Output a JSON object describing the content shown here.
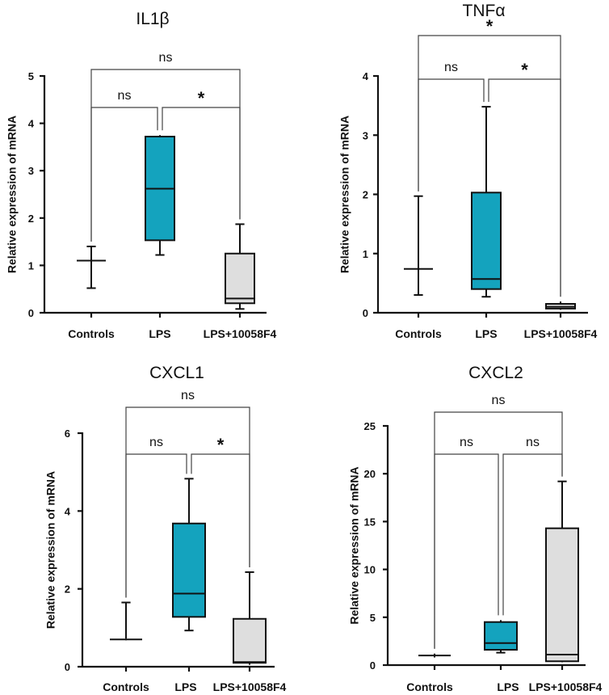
{
  "figure": {
    "box_colors": {
      "Controls": "#ffffff",
      "LPS": "#14a3be",
      "LPS+10058F4": "#dedede"
    }
  },
  "chart_data": [
    {
      "type": "box",
      "title": "IL1β",
      "ylabel": "Relative expression of mRNA",
      "ylim": [
        0,
        5
      ],
      "yticks": [
        "0",
        "1",
        "2",
        "3",
        "4",
        "5"
      ],
      "categories": [
        "Controls",
        "LPS",
        "LPS+10058F4"
      ],
      "boxes": [
        {
          "category": "Controls",
          "min": 0.52,
          "q1": 1.1,
          "median": 1.1,
          "q3": 1.1,
          "max": 1.4
        },
        {
          "category": "LPS",
          "min": 1.22,
          "q1": 1.53,
          "median": 2.62,
          "q3": 3.72,
          "max": 3.75
        },
        {
          "category": "LPS+10058F4",
          "min": 0.08,
          "q1": 0.2,
          "median": 0.3,
          "q3": 1.25,
          "max": 1.87
        }
      ],
      "comparisons": [
        {
          "from": 0,
          "to": 1,
          "label": "ns"
        },
        {
          "from": 1,
          "to": 2,
          "label": "*"
        },
        {
          "from": 0,
          "to": 2,
          "label": "ns"
        }
      ]
    },
    {
      "type": "box",
      "title": "TNFα",
      "ylabel": "Relative expression of mRNA",
      "ylim": [
        0,
        4
      ],
      "yticks": [
        "0",
        "1",
        "2",
        "3",
        "4"
      ],
      "categories": [
        "Controls",
        "LPS",
        "LPS+10058F4"
      ],
      "boxes": [
        {
          "category": "Controls",
          "min": 0.3,
          "q1": 0.74,
          "median": 0.74,
          "q3": 0.74,
          "max": 1.97
        },
        {
          "category": "LPS",
          "min": 0.27,
          "q1": 0.4,
          "median": 0.57,
          "q3": 2.03,
          "max": 3.48
        },
        {
          "category": "LPS+10058F4",
          "min": 0.05,
          "q1": 0.07,
          "median": 0.1,
          "q3": 0.15,
          "max": 0.19
        }
      ],
      "comparisons": [
        {
          "from": 0,
          "to": 1,
          "label": "ns"
        },
        {
          "from": 1,
          "to": 2,
          "label": "*"
        },
        {
          "from": 0,
          "to": 2,
          "label": "*"
        }
      ]
    },
    {
      "type": "box",
      "title": "CXCL1",
      "ylabel": "Relative expression of mRNA",
      "ylim": [
        0,
        6
      ],
      "yticks": [
        "0",
        "2",
        "4",
        "6"
      ],
      "categories": [
        "Controls",
        "LPS",
        "LPS+10058F4"
      ],
      "boxes": [
        {
          "category": "Controls",
          "min": 0.68,
          "q1": 0.7,
          "median": 0.7,
          "q3": 0.72,
          "max": 1.65
        },
        {
          "category": "LPS",
          "min": 0.93,
          "q1": 1.28,
          "median": 1.88,
          "q3": 3.68,
          "max": 4.83
        },
        {
          "category": "LPS+10058F4",
          "min": 0.05,
          "q1": 0.1,
          "median": 0.12,
          "q3": 1.23,
          "max": 2.43
        }
      ],
      "comparisons": [
        {
          "from": 0,
          "to": 1,
          "label": "ns"
        },
        {
          "from": 1,
          "to": 2,
          "label": "*"
        },
        {
          "from": 0,
          "to": 2,
          "label": "ns"
        }
      ]
    },
    {
      "type": "box",
      "title": "CXCL2",
      "ylabel": "Relative expression of mRNA",
      "ylim": [
        0,
        25
      ],
      "yticks": [
        "0",
        "5",
        "10",
        "15",
        "20",
        "25"
      ],
      "categories": [
        "Controls",
        "LPS",
        "LPS+10058F4"
      ],
      "boxes": [
        {
          "category": "Controls",
          "min": 0.8,
          "q1": 1.0,
          "median": 1.0,
          "q3": 1.0,
          "max": 1.2
        },
        {
          "category": "LPS",
          "min": 1.3,
          "q1": 1.6,
          "median": 2.3,
          "q3": 4.5,
          "max": 4.7
        },
        {
          "category": "LPS+10058F4",
          "min": 0.3,
          "q1": 0.4,
          "median": 1.1,
          "q3": 14.3,
          "max": 19.2
        }
      ],
      "comparisons": [
        {
          "from": 0,
          "to": 1,
          "label": "ns"
        },
        {
          "from": 1,
          "to": 2,
          "label": "ns"
        },
        {
          "from": 0,
          "to": 2,
          "label": "ns"
        }
      ]
    }
  ]
}
